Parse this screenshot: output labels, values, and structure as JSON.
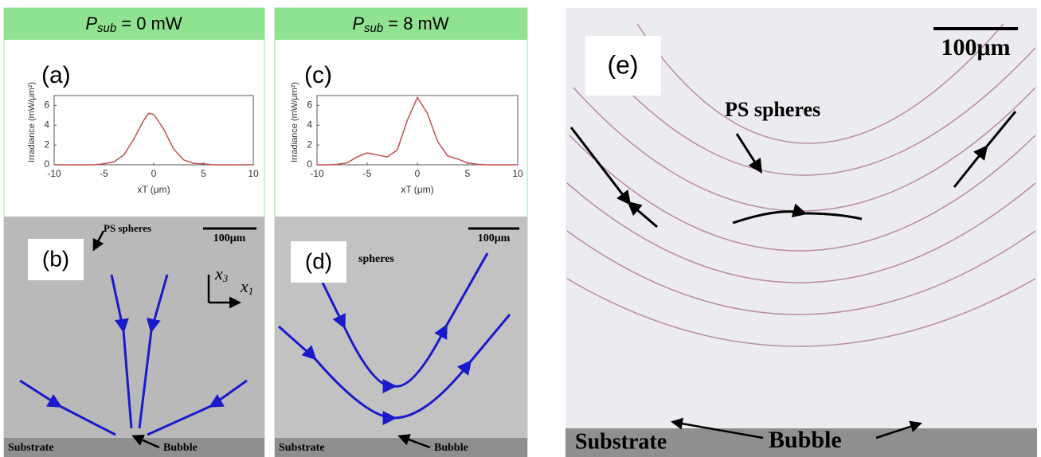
{
  "panels": [
    {
      "header": {
        "symbol": "P",
        "subscript": "sub",
        "text": "= 0 mW"
      },
      "chart_label": "(a)",
      "image_label": "(b)",
      "annotations": {
        "spheres": "PS spheres",
        "scale": "100μm",
        "axis_1": "x",
        "axis_1_sub": "3",
        "axis_2": "x",
        "axis_2_sub": "1",
        "substrate": "Substrate",
        "bubble": "Bubble"
      }
    },
    {
      "header": {
        "symbol": "P",
        "subscript": "sub",
        "text": "= 8 mW"
      },
      "chart_label": "(c)",
      "image_label": "(d)",
      "annotations": {
        "spheres": "spheres",
        "scale": "100μm",
        "substrate": "Substrate",
        "bubble": "Bubble"
      }
    },
    {
      "image_label": "(e)",
      "annotations": {
        "scale": "100μm",
        "spheres": "PS spheres",
        "substrate": "Substrate",
        "bubble": "Bubble"
      }
    }
  ],
  "chart_data": [
    {
      "type": "line",
      "ylabel": "Irradiance (mW/μm²)",
      "xlabel": "xT (μm)",
      "color": "#c0504d",
      "x": [
        -10,
        -9,
        -8,
        -7,
        -6,
        -5,
        -4,
        -3,
        -2,
        -1,
        -0.5,
        0,
        1,
        2,
        3,
        4,
        5,
        6,
        7,
        8,
        9,
        10
      ],
      "values": [
        0,
        0,
        0,
        0,
        0,
        0.1,
        0.3,
        1.0,
        2.6,
        4.5,
        5.2,
        5.1,
        3.6,
        1.6,
        0.5,
        0.15,
        0.1,
        0,
        0,
        0,
        0,
        0
      ],
      "xlim": [
        -10,
        10
      ],
      "xticks": [
        -10,
        -5,
        0,
        5,
        10
      ],
      "ylim": [
        0,
        7
      ],
      "yticks": [
        0,
        2,
        4,
        6
      ]
    },
    {
      "type": "line",
      "ylabel": "Irradiance (mW/μm²)",
      "xlabel": "xT (μm)",
      "color": "#c0504d",
      "x": [
        -10,
        -9,
        -8,
        -7,
        -6,
        -5,
        -4,
        -3,
        -2,
        -1,
        0,
        1,
        2,
        3,
        4,
        5,
        6,
        7,
        8,
        9,
        10
      ],
      "values": [
        0,
        0,
        0.05,
        0.2,
        0.8,
        1.2,
        1.0,
        0.8,
        1.5,
        4.5,
        6.8,
        5.2,
        2.4,
        0.9,
        0.6,
        0.2,
        0.05,
        0,
        0,
        0,
        0
      ],
      "xlim": [
        -10,
        10
      ],
      "xticks": [
        -10,
        -5,
        0,
        5,
        10
      ],
      "ylim": [
        0,
        7
      ],
      "yticks": [
        0,
        2,
        4,
        6
      ]
    }
  ]
}
